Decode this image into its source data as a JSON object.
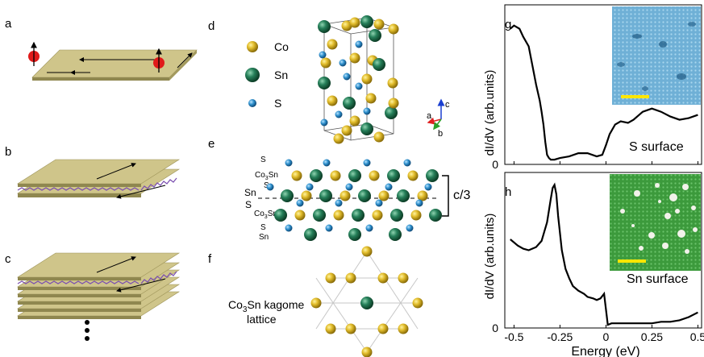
{
  "panel_letters": {
    "a": "a",
    "b": "b",
    "c": "c",
    "d": "d",
    "e": "e",
    "f": "f",
    "g": "g",
    "h": "h"
  },
  "legend": {
    "co": "Co",
    "sn": "Sn",
    "s": "S"
  },
  "axes_labels": {
    "a": "a",
    "b": "b",
    "c": "c"
  },
  "layers": {
    "s1": "S",
    "co3sn_top": "Co",
    "co3sn_top_sub": "3",
    "co3sn_top_end": "Sn",
    "s2": "S",
    "sn": "Sn",
    "s3": "S",
    "co3sn_bot": "Co",
    "co3sn_bot_sub": "3",
    "co3sn_bot_end": "Sn",
    "s4": "S",
    "sn_bot": "Sn",
    "spacing": "c/3"
  },
  "kagome": {
    "line1_a": "Co",
    "line1_sub": "3",
    "line1_b": "Sn kagome",
    "line2": "lattice"
  },
  "colors": {
    "co": "#d9b31f",
    "sn": "#21744e",
    "s": "#2a8fcc",
    "plate": "#cfc58a",
    "zigzag": "#7b4fb0",
    "spin": "#e01a1a",
    "g_inset": "#5a9fc8",
    "h_inset": "#3f9a3f",
    "scale_bar": "#ffe600"
  },
  "chart_data": [
    {
      "type": "line",
      "panel": "g",
      "ylabel": "dI/dV (arb.units)",
      "annotation": "S surface",
      "x": [
        -0.52,
        -0.5,
        -0.47,
        -0.45,
        -0.42,
        -0.4,
        -0.38,
        -0.36,
        -0.35,
        -0.34,
        -0.33,
        -0.32,
        -0.31,
        -0.3,
        -0.28,
        -0.25,
        -0.2,
        -0.15,
        -0.1,
        -0.05,
        -0.02,
        0.0,
        0.02,
        0.05,
        0.08,
        0.12,
        0.15,
        0.2,
        0.25,
        0.3,
        0.35,
        0.4,
        0.45,
        0.5
      ],
      "y": [
        0.85,
        0.87,
        0.85,
        0.8,
        0.74,
        0.62,
        0.5,
        0.4,
        0.33,
        0.25,
        0.14,
        0.06,
        0.04,
        0.03,
        0.03,
        0.04,
        0.05,
        0.07,
        0.07,
        0.05,
        0.06,
        0.12,
        0.19,
        0.25,
        0.27,
        0.26,
        0.28,
        0.33,
        0.35,
        0.33,
        0.3,
        0.28,
        0.29,
        0.31
      ],
      "xlim": [
        -0.55,
        0.52
      ],
      "ylim": [
        0,
        1
      ],
      "yticks": [
        "0"
      ],
      "grid": false
    },
    {
      "type": "line",
      "panel": "h",
      "xlabel": "Energy (eV)",
      "ylabel": "dI/dV (arb.units)",
      "annotation": "Sn surface",
      "x": [
        -0.52,
        -0.48,
        -0.45,
        -0.42,
        -0.38,
        -0.35,
        -0.32,
        -0.3,
        -0.29,
        -0.28,
        -0.27,
        -0.26,
        -0.24,
        -0.22,
        -0.2,
        -0.18,
        -0.15,
        -0.12,
        -0.1,
        -0.07,
        -0.05,
        -0.03,
        -0.01,
        0.0,
        0.01,
        0.03,
        0.05,
        0.1,
        0.15,
        0.2,
        0.25,
        0.3,
        0.35,
        0.4,
        0.45,
        0.5
      ],
      "y": [
        0.57,
        0.53,
        0.51,
        0.5,
        0.52,
        0.56,
        0.68,
        0.83,
        0.9,
        0.92,
        0.86,
        0.72,
        0.5,
        0.38,
        0.32,
        0.27,
        0.24,
        0.22,
        0.2,
        0.19,
        0.18,
        0.19,
        0.22,
        0.12,
        0.02,
        0.03,
        0.03,
        0.03,
        0.03,
        0.03,
        0.03,
        0.04,
        0.04,
        0.05,
        0.07,
        0.1
      ],
      "xlim": [
        -0.55,
        0.52
      ],
      "ylim": [
        0,
        1
      ],
      "xticks": [
        "-0.5",
        "-0.25",
        "0",
        "0.25",
        "0.5"
      ],
      "yticks": [
        "0"
      ],
      "grid": false
    }
  ]
}
